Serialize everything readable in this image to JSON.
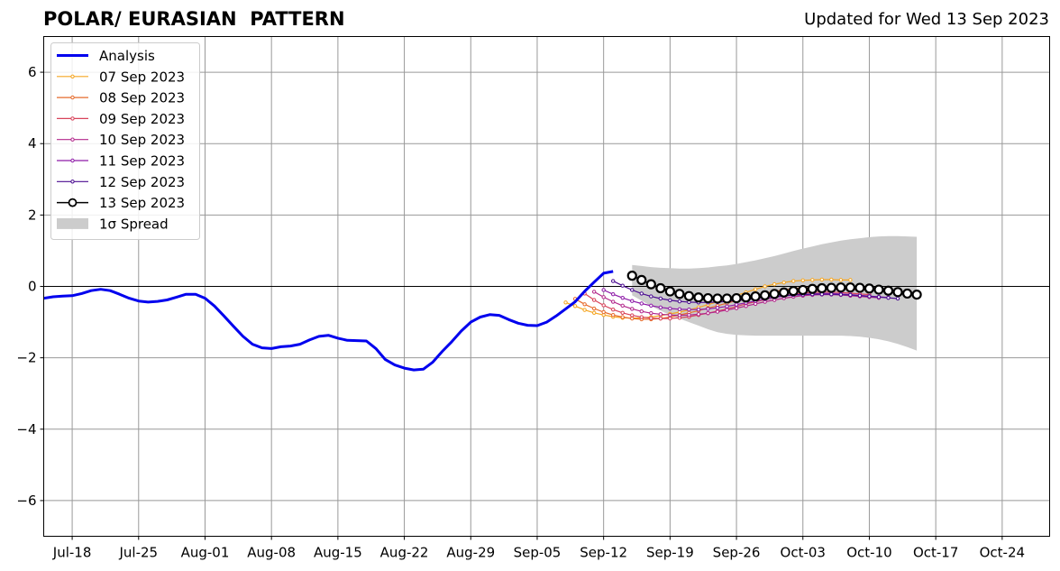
{
  "title": "POLAR/ EURASIAN  PATTERN",
  "updated": "Updated for Wed 13 Sep 2023",
  "colors": {
    "analysis": "#0000ee",
    "spread": "#cccccc",
    "grid": "#999999"
  },
  "chart_data": {
    "type": "line",
    "x_type": "date",
    "xlim": [
      "2023-07-15",
      "2023-10-29"
    ],
    "ylim": [
      -7,
      7
    ],
    "grid": true,
    "legend_position": "top-left",
    "x_ticks": [
      {
        "date": "2023-07-18",
        "label": "Jul-18"
      },
      {
        "date": "2023-07-25",
        "label": "Jul-25"
      },
      {
        "date": "2023-08-01",
        "label": "Aug-01"
      },
      {
        "date": "2023-08-08",
        "label": "Aug-08"
      },
      {
        "date": "2023-08-15",
        "label": "Aug-15"
      },
      {
        "date": "2023-08-22",
        "label": "Aug-22"
      },
      {
        "date": "2023-08-29",
        "label": "Aug-29"
      },
      {
        "date": "2023-09-05",
        "label": "Sep-05"
      },
      {
        "date": "2023-09-12",
        "label": "Sep-12"
      },
      {
        "date": "2023-09-19",
        "label": "Sep-19"
      },
      {
        "date": "2023-09-26",
        "label": "Sep-26"
      },
      {
        "date": "2023-10-03",
        "label": "Oct-03"
      },
      {
        "date": "2023-10-10",
        "label": "Oct-10"
      },
      {
        "date": "2023-10-17",
        "label": "Oct-17"
      },
      {
        "date": "2023-10-24",
        "label": "Oct-24"
      }
    ],
    "y_ticks": [
      {
        "value": -6,
        "label": "−6"
      },
      {
        "value": -4,
        "label": "−4"
      },
      {
        "value": -2,
        "label": "−2"
      },
      {
        "value": 0,
        "label": "0"
      },
      {
        "value": 2,
        "label": "2"
      },
      {
        "value": 4,
        "label": "4"
      },
      {
        "value": 6,
        "label": "6"
      }
    ],
    "analysis": {
      "name": "Analysis",
      "color": "#0000ee",
      "x": [
        "2023-07-15",
        "2023-07-16",
        "2023-07-17",
        "2023-07-18",
        "2023-07-19",
        "2023-07-20",
        "2023-07-21",
        "2023-07-22",
        "2023-07-23",
        "2023-07-24",
        "2023-07-25",
        "2023-07-26",
        "2023-07-27",
        "2023-07-28",
        "2023-07-29",
        "2023-07-30",
        "2023-07-31",
        "2023-08-01",
        "2023-08-02",
        "2023-08-03",
        "2023-08-04",
        "2023-08-05",
        "2023-08-06",
        "2023-08-07",
        "2023-08-08",
        "2023-08-09",
        "2023-08-10",
        "2023-08-11",
        "2023-08-12",
        "2023-08-13",
        "2023-08-14",
        "2023-08-15",
        "2023-08-16",
        "2023-08-17",
        "2023-08-18",
        "2023-08-19",
        "2023-08-20",
        "2023-08-21",
        "2023-08-22",
        "2023-08-23",
        "2023-08-24",
        "2023-08-25",
        "2023-08-26",
        "2023-08-27",
        "2023-08-28",
        "2023-08-29",
        "2023-08-30",
        "2023-08-31",
        "2023-09-01",
        "2023-09-02",
        "2023-09-03",
        "2023-09-04",
        "2023-09-05",
        "2023-09-06",
        "2023-09-07",
        "2023-09-08",
        "2023-09-09",
        "2023-09-10",
        "2023-09-11",
        "2023-09-12",
        "2023-09-13"
      ],
      "y": [
        -0.33,
        -0.29,
        -0.27,
        -0.26,
        -0.2,
        -0.12,
        -0.08,
        -0.12,
        -0.22,
        -0.33,
        -0.41,
        -0.44,
        -0.42,
        -0.38,
        -0.3,
        -0.22,
        -0.22,
        -0.33,
        -0.55,
        -0.83,
        -1.12,
        -1.4,
        -1.62,
        -1.72,
        -1.74,
        -1.69,
        -1.67,
        -1.62,
        -1.5,
        -1.4,
        -1.37,
        -1.45,
        -1.51,
        -1.52,
        -1.53,
        -1.74,
        -2.05,
        -2.2,
        -2.29,
        -2.34,
        -2.32,
        -2.12,
        -1.82,
        -1.55,
        -1.25,
        -1.0,
        -0.86,
        -0.79,
        -0.81,
        -0.93,
        -1.03,
        -1.09,
        -1.1,
        -1.0,
        -0.83,
        -0.63,
        -0.43,
        -0.14,
        0.12,
        0.37,
        0.42
      ]
    },
    "forecasts": [
      {
        "name": "07 Sep 2023",
        "color": "#f5a623",
        "start": "2023-09-08",
        "y": [
          -0.45,
          -0.55,
          -0.66,
          -0.74,
          -0.8,
          -0.85,
          -0.88,
          -0.89,
          -0.88,
          -0.86,
          -0.82,
          -0.77,
          -0.72,
          -0.66,
          -0.59,
          -0.51,
          -0.43,
          -0.34,
          -0.25,
          -0.17,
          -0.08,
          0.0,
          0.06,
          0.11,
          0.15,
          0.17,
          0.18,
          0.19,
          0.19,
          0.18,
          0.18
        ]
      },
      {
        "name": "08 Sep 2023",
        "color": "#e66b2c",
        "start": "2023-09-09",
        "y": [
          -0.35,
          -0.5,
          -0.62,
          -0.72,
          -0.8,
          -0.86,
          -0.9,
          -0.92,
          -0.92,
          -0.9,
          -0.86,
          -0.8,
          -0.74,
          -0.68,
          -0.61,
          -0.54,
          -0.47,
          -0.4,
          -0.33,
          -0.26,
          -0.2,
          -0.14,
          -0.1,
          -0.06,
          -0.04,
          -0.03,
          -0.03,
          -0.04,
          -0.06,
          -0.08,
          -0.1
        ]
      },
      {
        "name": "09 Sep 2023",
        "color": "#d8435a",
        "start": "2023-09-10",
        "y": [
          -0.2,
          -0.38,
          -0.53,
          -0.65,
          -0.74,
          -0.81,
          -0.86,
          -0.89,
          -0.9,
          -0.9,
          -0.88,
          -0.85,
          -0.8,
          -0.75,
          -0.69,
          -0.63,
          -0.56,
          -0.49,
          -0.43,
          -0.37,
          -0.31,
          -0.26,
          -0.22,
          -0.19,
          -0.17,
          -0.16,
          -0.16,
          -0.17,
          -0.19,
          -0.21,
          -0.23
        ]
      },
      {
        "name": "10 Sep 2023",
        "color": "#b3288c",
        "start": "2023-09-11",
        "y": [
          -0.15,
          -0.3,
          -0.43,
          -0.54,
          -0.63,
          -0.7,
          -0.75,
          -0.78,
          -0.8,
          -0.81,
          -0.8,
          -0.78,
          -0.75,
          -0.71,
          -0.66,
          -0.61,
          -0.55,
          -0.49,
          -0.43,
          -0.38,
          -0.33,
          -0.29,
          -0.26,
          -0.24,
          -0.23,
          -0.23,
          -0.24,
          -0.26,
          -0.28,
          -0.3,
          -0.32
        ]
      },
      {
        "name": "11 Sep 2023",
        "color": "#8e1aa8",
        "start": "2023-09-12",
        "y": [
          -0.1,
          -0.22,
          -0.32,
          -0.41,
          -0.48,
          -0.54,
          -0.59,
          -0.62,
          -0.64,
          -0.65,
          -0.65,
          -0.63,
          -0.6,
          -0.56,
          -0.51,
          -0.46,
          -0.41,
          -0.36,
          -0.31,
          -0.27,
          -0.24,
          -0.22,
          -0.21,
          -0.2,
          -0.2,
          -0.21,
          -0.23,
          -0.25,
          -0.27,
          -0.29,
          -0.31
        ]
      },
      {
        "name": "12 Sep 2023",
        "color": "#4b0c91",
        "start": "2023-09-13",
        "y": [
          0.15,
          0.02,
          -0.1,
          -0.2,
          -0.28,
          -0.34,
          -0.39,
          -0.42,
          -0.44,
          -0.45,
          -0.45,
          -0.44,
          -0.42,
          -0.4,
          -0.37,
          -0.34,
          -0.31,
          -0.28,
          -0.26,
          -0.24,
          -0.23,
          -0.22,
          -0.22,
          -0.22,
          -0.23,
          -0.24,
          -0.26,
          -0.28,
          -0.3,
          -0.32,
          -0.34
        ]
      },
      {
        "name": "13 Sep 2023",
        "color": "#000000",
        "start": "2023-09-15",
        "markers": "open-circle",
        "y": [
          0.3,
          0.18,
          0.06,
          -0.05,
          -0.14,
          -0.21,
          -0.27,
          -0.31,
          -0.33,
          -0.34,
          -0.34,
          -0.33,
          -0.31,
          -0.28,
          -0.25,
          -0.21,
          -0.17,
          -0.13,
          -0.1,
          -0.07,
          -0.05,
          -0.04,
          -0.03,
          -0.03,
          -0.04,
          -0.06,
          -0.09,
          -0.12,
          -0.16,
          -0.2,
          -0.23
        ]
      }
    ],
    "spread": {
      "name": "1σ Spread",
      "color": "#cccccc",
      "start": "2023-09-15",
      "upper": [
        0.6,
        0.57,
        0.54,
        0.52,
        0.51,
        0.5,
        0.5,
        0.51,
        0.53,
        0.56,
        0.59,
        0.63,
        0.68,
        0.73,
        0.79,
        0.85,
        0.92,
        0.99,
        1.06,
        1.12,
        1.18,
        1.23,
        1.28,
        1.32,
        1.35,
        1.38,
        1.4,
        1.41,
        1.41,
        1.4,
        1.39
      ],
      "lower": [
        -0.25,
        -0.4,
        -0.55,
        -0.68,
        -0.8,
        -0.9,
        -1.0,
        -1.1,
        -1.2,
        -1.28,
        -1.33,
        -1.36,
        -1.37,
        -1.38,
        -1.38,
        -1.38,
        -1.38,
        -1.38,
        -1.38,
        -1.38,
        -1.38,
        -1.38,
        -1.38,
        -1.39,
        -1.41,
        -1.44,
        -1.48,
        -1.54,
        -1.61,
        -1.7,
        -1.8
      ]
    },
    "legend": [
      {
        "label": "Analysis",
        "kind": "line-thick",
        "color": "#0000ee"
      },
      {
        "label": "07 Sep 2023",
        "kind": "line-dot",
        "color": "#f5a623"
      },
      {
        "label": "08 Sep 2023",
        "kind": "line-dot",
        "color": "#e66b2c"
      },
      {
        "label": "09 Sep 2023",
        "kind": "line-dot",
        "color": "#d8435a"
      },
      {
        "label": "10 Sep 2023",
        "kind": "line-dot",
        "color": "#b3288c"
      },
      {
        "label": "11 Sep 2023",
        "kind": "line-dot",
        "color": "#8e1aa8"
      },
      {
        "label": "12 Sep 2023",
        "kind": "line-dot",
        "color": "#4b0c91"
      },
      {
        "label": "13 Sep 2023",
        "kind": "line-circle",
        "color": "#000000"
      },
      {
        "label": "1σ Spread",
        "kind": "patch",
        "color": "#cccccc"
      }
    ]
  }
}
